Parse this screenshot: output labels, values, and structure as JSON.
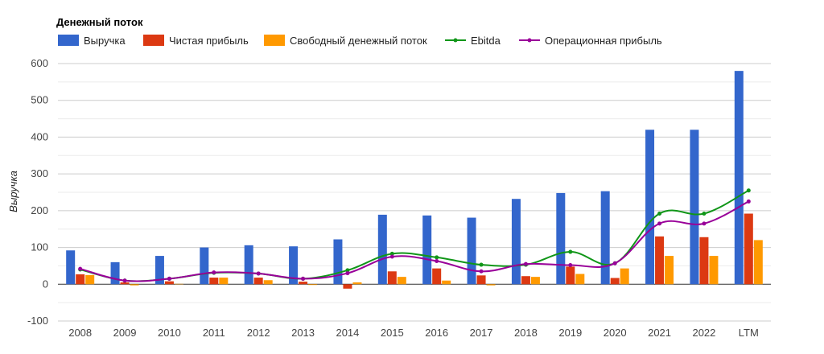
{
  "chart_data": {
    "type": "bar",
    "title": "Денежный поток",
    "ylabel": "Выручка",
    "xlabel": "",
    "ylim": [
      -100,
      600
    ],
    "yticks": [
      -100,
      0,
      100,
      200,
      300,
      400,
      500,
      600
    ],
    "grid": true,
    "legend_position": "top",
    "categories": [
      "2008",
      "2009",
      "2010",
      "2011",
      "2012",
      "2013",
      "2014",
      "2015",
      "2016",
      "2017",
      "2018",
      "2019",
      "2020",
      "2021",
      "2022",
      "LTM"
    ],
    "series": [
      {
        "name": "Выручка",
        "type": "bar",
        "color": "#3366cc",
        "values": [
          92,
          60,
          77,
          100,
          106,
          103,
          122,
          189,
          187,
          181,
          232,
          248,
          253,
          420,
          420,
          580
        ]
      },
      {
        "name": "Чистая прибыль",
        "type": "bar",
        "color": "#dc3912",
        "values": [
          27,
          5,
          8,
          18,
          18,
          7,
          -12,
          35,
          43,
          24,
          22,
          48,
          17,
          130,
          128,
          192
        ]
      },
      {
        "name": "Свободный денежный поток",
        "type": "bar",
        "color": "#ff9900",
        "values": [
          25,
          -3,
          1,
          18,
          11,
          -2,
          5,
          20,
          10,
          -3,
          20,
          28,
          43,
          77,
          77,
          120
        ]
      },
      {
        "name": "Ebitda",
        "type": "line",
        "color": "#109618",
        "values": [
          40,
          10,
          15,
          31,
          29,
          15,
          38,
          83,
          73,
          53,
          53,
          88,
          57,
          192,
          192,
          255
        ]
      },
      {
        "name": "Операционная прибыль",
        "type": "line",
        "color": "#990099",
        "values": [
          42,
          10,
          15,
          32,
          29,
          15,
          30,
          75,
          63,
          35,
          55,
          52,
          57,
          165,
          165,
          225
        ]
      }
    ]
  }
}
